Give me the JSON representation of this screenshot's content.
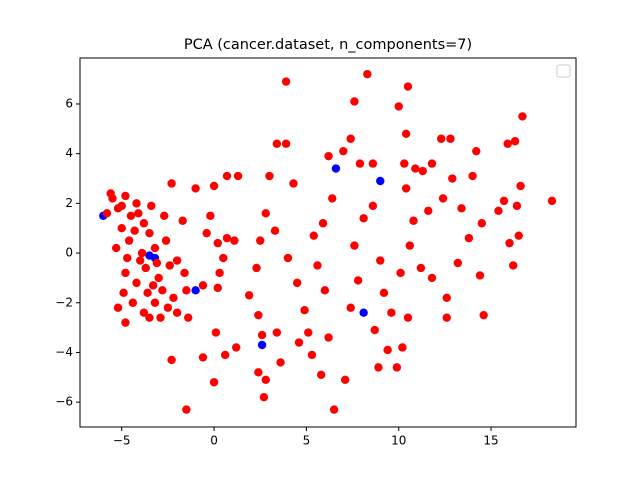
{
  "chart_data": {
    "type": "scatter",
    "title": "PCA (cancer.dataset, n_components=7)",
    "xlim": [
      -7.26,
      19.6
    ],
    "ylim": [
      -7.0,
      7.85
    ],
    "xticks": [
      {
        "value": -5,
        "label": "−5"
      },
      0,
      5,
      10,
      15
    ],
    "yticks": [
      {
        "value": -6,
        "label": "−6"
      },
      {
        "value": -4,
        "label": "−4"
      },
      {
        "value": -2,
        "label": "−2"
      },
      0,
      2,
      4,
      6
    ],
    "grid": false,
    "legend": "upper right",
    "series": [
      {
        "color": "blue",
        "x": [
          -6.0,
          -3.2,
          -1.0,
          2.6,
          6.6,
          9.0,
          8.1,
          -3.5
        ],
        "values": [
          1.5,
          -0.2,
          -1.5,
          -3.7,
          3.4,
          2.9,
          -2.4,
          -0.1
        ]
      },
      {
        "color": "red",
        "x": [
          -5.5,
          -5.2,
          -4.8,
          -4.5,
          -5.0,
          -4.2,
          -3.8,
          -4.6,
          -5.3,
          -4.0,
          -3.5,
          -3.2,
          -4.8,
          -4.2,
          -3.6,
          -3.0,
          -4.4,
          -3.8,
          -3.2,
          -4.8,
          -3.5,
          -2.8,
          -2.4,
          -2.2,
          -2.6,
          -5.8,
          -5.6,
          -4.1,
          -3.7,
          -4.9,
          -5.2,
          -2.9,
          -2.5,
          -3.3,
          -4.3,
          -5.0,
          -3.9,
          -4.7,
          -3.1,
          -2.0,
          -1.6,
          -1.5,
          -2.0,
          -1.4,
          -2.3,
          -1.7,
          -2.7,
          -3.4,
          -2.3,
          -1.5,
          -0.6,
          0.0,
          0.1,
          0.6,
          1.2,
          0.2,
          -0.6,
          0.3,
          -0.4,
          0.2,
          0.7,
          1.1,
          0.5,
          0.0,
          -0.2,
          0.7,
          1.3,
          -1.0,
          1.9,
          2.3,
          2.4,
          2.6,
          2.4,
          2.8,
          2.7,
          3.4,
          3.6,
          2.5,
          2.8,
          3.0,
          3.4,
          3.9,
          4.3,
          3.9,
          3.3,
          4.0,
          4.5,
          4.9,
          5.1,
          4.6,
          5.3,
          5.8,
          6.2,
          6.0,
          5.6,
          5.4,
          5.9,
          6.4,
          6.2,
          7.0,
          7.4,
          7.6,
          8.3,
          7.9,
          8.6,
          6.5,
          7.1,
          7.4,
          7.8,
          7.6,
          8.1,
          8.6,
          9.0,
          9.2,
          8.7,
          9.4,
          9.6,
          8.9,
          9.9,
          10.2,
          10.5,
          10.1,
          10.6,
          10.8,
          10.4,
          10.9,
          10.3,
          10.0,
          10.5,
          10.4,
          11.3,
          11.8,
          12.3,
          12.8,
          11.6,
          12.4,
          11.2,
          11.8,
          12.6,
          12.6,
          13.2,
          13.8,
          13.4,
          12.9,
          14.0,
          14.2,
          14.5,
          14.4,
          14.6,
          15.4,
          15.7,
          16.0,
          16.2,
          16.5,
          16.6,
          16.7,
          16.3,
          15.9,
          18.3,
          16.4
        ],
        "values": [
          2.2,
          1.8,
          2.3,
          1.5,
          1.0,
          2.0,
          1.2,
          0.5,
          0.2,
          -0.3,
          0.8,
          0.2,
          -0.8,
          -1.2,
          -1.6,
          -1.0,
          -2.0,
          -2.4,
          -2.0,
          -2.8,
          -2.6,
          -1.5,
          -0.5,
          -1.8,
          0.5,
          1.6,
          2.4,
          1.6,
          -0.6,
          -1.6,
          -2.2,
          -2.6,
          -2.2,
          -1.3,
          0.9,
          1.9,
          0.0,
          -0.2,
          -0.4,
          -0.3,
          -0.8,
          -1.5,
          -2.4,
          -2.6,
          2.8,
          1.3,
          1.5,
          1.9,
          -4.3,
          -6.3,
          -4.2,
          -5.2,
          -3.2,
          -4.1,
          -3.8,
          -1.4,
          -1.3,
          -0.8,
          0.8,
          0.4,
          0.6,
          0.5,
          -0.2,
          2.7,
          1.5,
          3.1,
          3.1,
          2.6,
          -1.7,
          -0.6,
          -2.5,
          -3.3,
          -4.8,
          -5.1,
          -5.8,
          -3.2,
          -4.4,
          0.5,
          1.6,
          3.1,
          4.4,
          4.4,
          2.8,
          6.9,
          0.9,
          -0.2,
          -1.2,
          -2.3,
          -3.2,
          -3.6,
          -4.1,
          -4.9,
          -3.4,
          -1.5,
          -0.5,
          0.7,
          1.2,
          2.2,
          3.9,
          4.1,
          4.6,
          6.1,
          7.2,
          3.6,
          3.6,
          -6.3,
          -5.1,
          -2.2,
          -1.1,
          0.3,
          1.4,
          1.9,
          -0.3,
          -1.6,
          -3.1,
          -3.9,
          -2.4,
          -4.6,
          -4.6,
          -3.8,
          -2.6,
          -0.8,
          0.3,
          1.3,
          2.6,
          3.4,
          3.6,
          5.9,
          6.7,
          4.8,
          3.3,
          3.6,
          4.6,
          4.6,
          1.7,
          2.2,
          -0.6,
          -1.0,
          -1.8,
          -2.6,
          -0.4,
          0.6,
          1.8,
          3.0,
          3.1,
          4.1,
          1.2,
          -0.9,
          -2.5,
          1.7,
          2.1,
          0.4,
          -0.5,
          0.7,
          2.7,
          5.5,
          4.5,
          4.4,
          2.1,
          1.9
        ]
      }
    ]
  }
}
